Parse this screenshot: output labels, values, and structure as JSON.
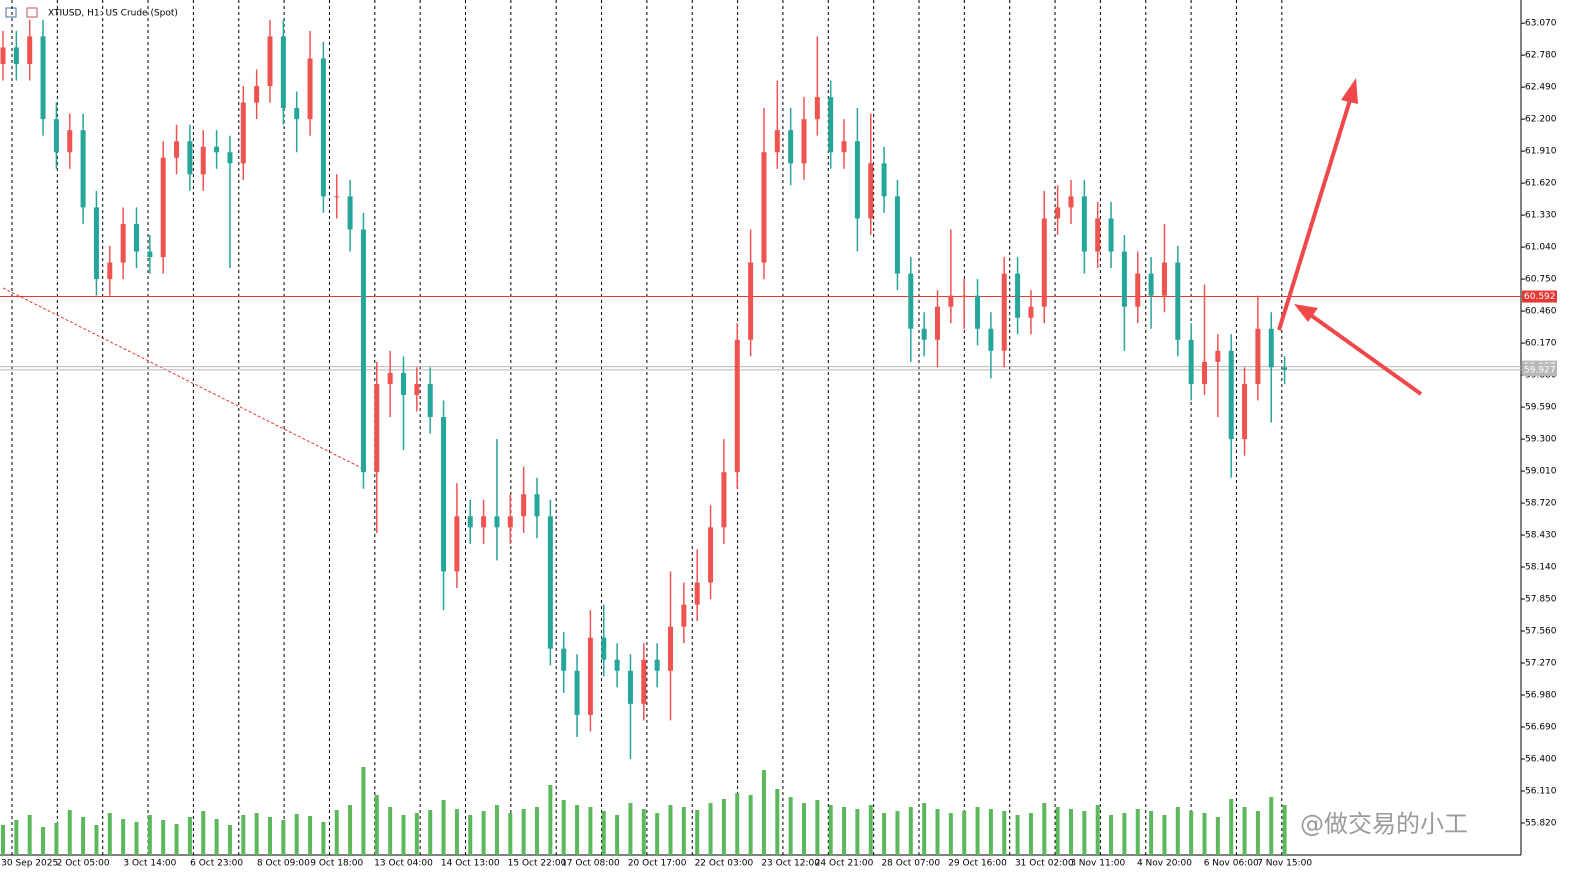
{
  "chart_data": {
    "type": "candlestick",
    "title": "XTIUSD, H1:  US Crude (Spot)",
    "categories": [
      null,
      null,
      "30 Sep 2025",
      null,
      null,
      null,
      "2 Oct 05:00",
      null,
      null,
      null,
      null,
      "3 Oct 14:00",
      null,
      null,
      null,
      null,
      "6 Oct 23:00",
      null,
      null,
      null,
      null,
      "8 Oct 09:00",
      null,
      null,
      null,
      "9 Oct 18:00",
      null,
      null,
      null,
      null,
      "13 Oct 04:00",
      null,
      null,
      null,
      null,
      "14 Oct 13:00",
      null,
      null,
      null,
      null,
      "15 Oct 22:00",
      null,
      null,
      null,
      "17 Oct 08:00",
      null,
      null,
      null,
      null,
      "20 Oct 17:00",
      null,
      null,
      null,
      null,
      "22 Oct 03:00",
      null,
      null,
      null,
      null,
      "23 Oct 12:00",
      null,
      null,
      null,
      "24 Oct 21:00",
      null,
      null,
      null,
      null,
      "28 Oct 07:00",
      null,
      null,
      null,
      null,
      "29 Oct 16:00",
      null,
      null,
      null,
      null,
      "31 Oct 02:00",
      null,
      null,
      null,
      "3 Nov 11:00",
      null,
      null,
      null,
      null,
      "4 Nov 20:00",
      null,
      null,
      null,
      null,
      "6 Nov 06:00",
      null,
      null,
      null,
      "7 Nov 15:00"
    ],
    "open": [
      62.7,
      62.85,
      62.7,
      62.95,
      62.2,
      61.9,
      62.1,
      61.4,
      60.75,
      60.9,
      61.25,
      61.0,
      60.95,
      61.85,
      62.0,
      61.7,
      61.95,
      61.9,
      61.8,
      62.35,
      62.5,
      62.95,
      62.3,
      62.2,
      62.75,
      61.5,
      61.5,
      61.2,
      59.0,
      59.8,
      59.9,
      59.7,
      59.8,
      59.5,
      58.1,
      58.6,
      58.5,
      58.6,
      58.5,
      58.6,
      58.8,
      58.6,
      57.4,
      57.2,
      56.8,
      57.5,
      57.3,
      57.2,
      56.9,
      57.3,
      57.2,
      57.6,
      57.8,
      58.0,
      58.5,
      59.0,
      60.2,
      60.9,
      61.9,
      62.1,
      61.8,
      62.2,
      62.4,
      61.9,
      62.0,
      61.3,
      61.8,
      61.5,
      60.8,
      60.3,
      60.2,
      60.5,
      60.6,
      60.6,
      60.3,
      60.1,
      60.8,
      60.4,
      60.5,
      61.3,
      61.4,
      61.5,
      61.0,
      61.3,
      61.0,
      60.5,
      60.8,
      60.6,
      60.9,
      60.2,
      59.8,
      60.0,
      60.1,
      59.3,
      59.8,
      60.3,
      59.95
    ],
    "high": [
      63.0,
      63.0,
      63.1,
      63.1,
      62.35,
      62.25,
      62.25,
      61.55,
      61.05,
      61.4,
      61.4,
      61.15,
      62.0,
      62.15,
      62.15,
      62.1,
      62.1,
      62.05,
      62.5,
      62.65,
      63.1,
      63.1,
      62.45,
      63.0,
      62.9,
      61.7,
      61.65,
      61.35,
      60.0,
      60.1,
      60.05,
      59.95,
      59.95,
      59.65,
      58.9,
      58.75,
      58.75,
      59.3,
      58.8,
      59.05,
      58.95,
      58.75,
      57.55,
      57.35,
      57.75,
      57.8,
      57.45,
      57.35,
      57.45,
      57.45,
      58.1,
      58.0,
      58.3,
      58.7,
      59.3,
      60.35,
      61.2,
      62.3,
      62.55,
      62.3,
      62.4,
      62.95,
      62.55,
      62.2,
      62.3,
      62.25,
      61.95,
      61.65,
      60.95,
      60.45,
      60.65,
      61.2,
      60.75,
      60.75,
      60.45,
      60.95,
      60.95,
      60.65,
      61.55,
      61.6,
      61.65,
      61.65,
      61.45,
      61.45,
      61.15,
      61.0,
      60.95,
      61.25,
      61.05,
      60.35,
      60.7,
      60.25,
      60.25,
      59.95,
      60.6,
      60.45,
      60.05
    ],
    "low": [
      62.55,
      62.55,
      62.55,
      62.05,
      61.75,
      61.75,
      61.25,
      60.6,
      60.6,
      60.75,
      60.85,
      60.8,
      60.8,
      61.7,
      61.55,
      61.55,
      61.75,
      60.85,
      61.65,
      62.2,
      62.35,
      62.15,
      61.9,
      62.05,
      61.35,
      61.3,
      61.0,
      58.85,
      58.45,
      59.5,
      59.2,
      59.55,
      59.35,
      57.75,
      57.95,
      58.35,
      58.35,
      58.2,
      58.35,
      58.45,
      58.4,
      57.25,
      57.0,
      56.6,
      56.65,
      57.15,
      57.05,
      56.4,
      56.75,
      57.05,
      56.75,
      57.45,
      57.65,
      57.85,
      58.35,
      58.85,
      60.05,
      60.75,
      61.75,
      61.6,
      61.65,
      62.05,
      61.75,
      61.75,
      61.0,
      61.15,
      61.35,
      60.65,
      60.0,
      60.05,
      59.95,
      60.35,
      60.3,
      60.15,
      59.85,
      59.95,
      60.25,
      60.25,
      60.35,
      61.15,
      61.25,
      60.8,
      60.85,
      60.85,
      60.1,
      60.35,
      60.3,
      60.45,
      60.05,
      59.65,
      59.7,
      59.5,
      58.95,
      59.15,
      59.65,
      59.45,
      59.8
    ],
    "close": [
      62.85,
      62.7,
      62.95,
      62.2,
      61.9,
      62.1,
      61.4,
      60.75,
      60.9,
      61.25,
      61.0,
      60.95,
      61.85,
      62.0,
      61.7,
      61.95,
      61.9,
      61.8,
      62.35,
      62.5,
      62.95,
      62.3,
      62.2,
      62.75,
      61.5,
      61.5,
      61.2,
      59.0,
      59.8,
      59.9,
      59.7,
      59.8,
      59.5,
      58.1,
      58.6,
      58.5,
      58.6,
      58.5,
      58.6,
      58.8,
      58.6,
      57.4,
      57.2,
      56.8,
      57.5,
      57.3,
      57.2,
      56.9,
      57.3,
      57.2,
      57.6,
      57.8,
      58.0,
      58.5,
      59.0,
      60.2,
      60.9,
      61.9,
      62.1,
      61.8,
      62.2,
      62.4,
      61.9,
      62.0,
      61.3,
      61.8,
      61.5,
      60.8,
      60.3,
      60.2,
      60.5,
      60.6,
      60.6,
      60.3,
      60.1,
      60.8,
      60.4,
      60.5,
      61.3,
      61.4,
      61.5,
      61.0,
      61.3,
      61.0,
      60.5,
      60.8,
      60.6,
      60.9,
      60.2,
      59.8,
      60.0,
      60.1,
      59.3,
      59.8,
      60.3,
      59.95,
      59.927
    ],
    "volume": [
      30,
      35,
      40,
      28,
      32,
      45,
      38,
      30,
      42,
      36,
      33,
      40,
      35,
      31,
      38,
      44,
      36,
      30,
      40,
      42,
      38,
      35,
      41,
      39,
      33,
      45,
      50,
      88,
      60,
      48,
      40,
      42,
      45,
      55,
      46,
      40,
      44,
      50,
      42,
      46,
      48,
      70,
      55,
      50,
      48,
      44,
      40,
      52,
      46,
      42,
      50,
      48,
      45,
      52,
      56,
      62,
      60,
      85,
      66,
      58,
      52,
      55,
      50,
      48,
      46,
      50,
      42,
      44,
      48,
      52,
      46,
      42,
      44,
      48,
      46,
      44,
      40,
      42,
      52,
      48,
      46,
      44,
      50,
      40,
      42,
      46,
      44,
      40,
      48,
      44,
      42,
      38,
      56,
      48,
      44,
      58,
      50
    ],
    "up_color": "#ef5350",
    "down_color": "#26a69a",
    "volume_color": "#5cb85c",
    "ylim": [
      55.53,
      63.28
    ],
    "yticks": [
      {
        "value": 55.82,
        "label": "55.820"
      },
      {
        "value": 56.11,
        "label": "56.110"
      },
      {
        "value": 56.4,
        "label": "56.400"
      },
      {
        "value": 56.69,
        "label": "56.690"
      },
      {
        "value": 56.98,
        "label": "56.980"
      },
      {
        "value": 57.27,
        "label": "57.270"
      },
      {
        "value": 57.56,
        "label": "57.560"
      },
      {
        "value": 57.85,
        "label": "57.850"
      },
      {
        "value": 58.14,
        "label": "58.140"
      },
      {
        "value": 58.43,
        "label": "58.430"
      },
      {
        "value": 58.72,
        "label": "58.720"
      },
      {
        "value": 59.01,
        "label": "59.010"
      },
      {
        "value": 59.3,
        "label": "59.300"
      },
      {
        "value": 59.59,
        "label": "59.590"
      },
      {
        "value": 59.88,
        "label": "59.880"
      },
      {
        "value": 60.17,
        "label": "60.170"
      },
      {
        "value": 60.46,
        "label": "60.460"
      },
      {
        "value": 60.75,
        "label": "60.750"
      },
      {
        "value": 61.04,
        "label": "61.040"
      },
      {
        "value": 61.33,
        "label": "61.330"
      },
      {
        "value": 61.62,
        "label": "61.620"
      },
      {
        "value": 61.91,
        "label": "61.910"
      },
      {
        "value": 62.2,
        "label": "62.200"
      },
      {
        "value": 62.49,
        "label": "62.490"
      },
      {
        "value": 62.78,
        "label": "62.780"
      },
      {
        "value": 63.07,
        "label": "63.070"
      }
    ],
    "price_lines": [
      {
        "value": 59.957,
        "label": "59.957",
        "color": "#b8b8b8"
      },
      {
        "value": 59.927,
        "label": "59.927",
        "color": "#b8b8b8"
      },
      {
        "value": 60.592,
        "label": "60.592",
        "color": "#e53935"
      }
    ],
    "trendline": {
      "x": [
        0,
        27
      ],
      "y": [
        60.67,
        59.03
      ],
      "color": "#e53935"
    }
  },
  "watermark": "@做交易的小工"
}
